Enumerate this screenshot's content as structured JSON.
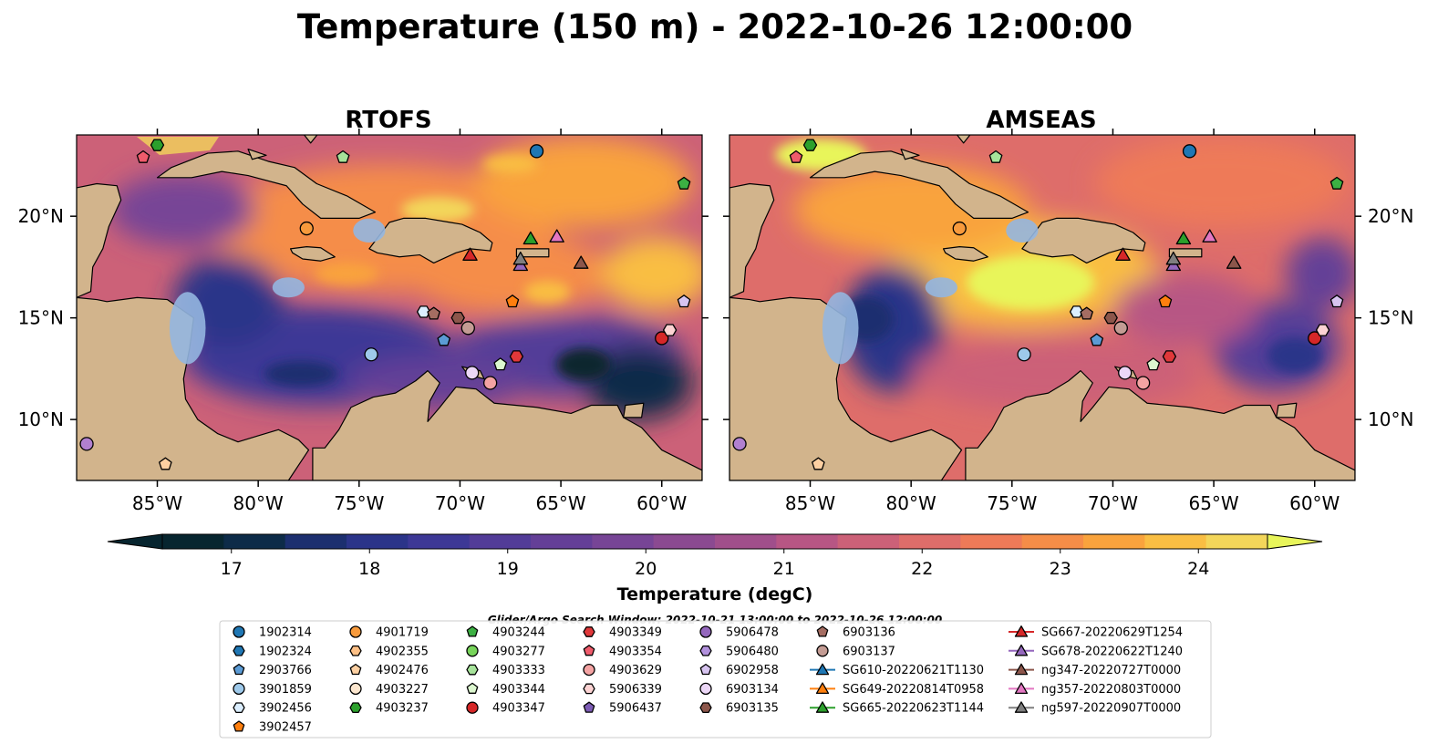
{
  "title": "Temperature (150 m) - 2022-10-26 12:00:00",
  "panels": [
    {
      "name": "RTOFS"
    },
    {
      "name": "AMSEAS"
    }
  ],
  "map": {
    "lon_range": [
      -89,
      -58
    ],
    "lat_range": [
      7,
      24
    ],
    "lon_ticks": [
      {
        "value": -85,
        "label": "85°W"
      },
      {
        "value": -80,
        "label": "80°W"
      },
      {
        "value": -75,
        "label": "75°W"
      },
      {
        "value": -70,
        "label": "70°W"
      },
      {
        "value": -65,
        "label": "65°W"
      },
      {
        "value": -60,
        "label": "60°W"
      }
    ],
    "lat_ticks": [
      {
        "value": 10,
        "label": "10°N"
      },
      {
        "value": 15,
        "label": "15°N"
      },
      {
        "value": 20,
        "label": "20°N"
      }
    ],
    "colors": {
      "land": "#d2b48c",
      "shelf": "#93b6e0",
      "deep": "#0a2a35"
    }
  },
  "colorbar": {
    "label": "Temperature (degC)",
    "range": [
      16.5,
      24.5
    ],
    "ticks": [
      {
        "value": 17,
        "label": "17"
      },
      {
        "value": 18,
        "label": "18"
      },
      {
        "value": 19,
        "label": "19"
      },
      {
        "value": 20,
        "label": "20"
      },
      {
        "value": 21,
        "label": "21"
      },
      {
        "value": 22,
        "label": "22"
      },
      {
        "value": 23,
        "label": "23"
      },
      {
        "value": 24,
        "label": "24"
      }
    ],
    "colors": [
      "#07252f",
      "#0d2b48",
      "#1c2f6f",
      "#2b3489",
      "#3d3896",
      "#523c98",
      "#643f97",
      "#774596",
      "#8b4a91",
      "#a04f8b",
      "#b75684",
      "#cc6178",
      "#de6d6a",
      "#ee7a58",
      "#f58d48",
      "#f9a33d",
      "#f9be43",
      "#f3d65a"
    ],
    "extend_color": "#e8f55a"
  },
  "legend": {
    "search_window": "Glider/Argo Search Window: 2022-10-21 13:00:00 to 2022-10-26 12:00:00",
    "columns": [
      [
        {
          "label": "1902314",
          "marker": "circle",
          "color": "#1f77b4"
        },
        {
          "label": "1902324",
          "marker": "hexagon",
          "color": "#1f77b4"
        },
        {
          "label": "2903766",
          "marker": "pentagon",
          "color": "#5b9bd5"
        },
        {
          "label": "3901859",
          "marker": "circle",
          "color": "#9ec9ea"
        },
        {
          "label": "3902456",
          "marker": "hexagon",
          "color": "#dbeeff"
        },
        {
          "label": "3902457",
          "marker": "pentagon",
          "color": "#ff7f0e"
        }
      ],
      [
        {
          "label": "4901719",
          "marker": "circle",
          "color": "#f79a3c"
        },
        {
          "label": "4902355",
          "marker": "hexagon",
          "color": "#fdc086"
        },
        {
          "label": "4902476",
          "marker": "pentagon",
          "color": "#fdd0a2"
        },
        {
          "label": "4903227",
          "marker": "circle",
          "color": "#fde7cf"
        },
        {
          "label": "4903237",
          "marker": "hexagon",
          "color": "#2ca02c"
        }
      ],
      [
        {
          "label": "4903244",
          "marker": "pentagon",
          "color": "#3cb043"
        },
        {
          "label": "4903277",
          "marker": "circle",
          "color": "#77d45a"
        },
        {
          "label": "4903333",
          "marker": "hexagon",
          "color": "#a6e39a"
        },
        {
          "label": "4903344",
          "marker": "pentagon",
          "color": "#dcf7cf"
        },
        {
          "label": "4903347",
          "marker": "circle",
          "color": "#d62728"
        }
      ],
      [
        {
          "label": "4903349",
          "marker": "hexagon",
          "color": "#e0383a"
        },
        {
          "label": "4903354",
          "marker": "pentagon",
          "color": "#ef5b6b"
        },
        {
          "label": "4903629",
          "marker": "circle",
          "color": "#f4a3a3"
        },
        {
          "label": "5906339",
          "marker": "hexagon",
          "color": "#fcd3d3"
        },
        {
          "label": "5906437",
          "marker": "pentagon",
          "color": "#7d5cb5"
        }
      ],
      [
        {
          "label": "5906478",
          "marker": "circle",
          "color": "#9467bd"
        },
        {
          "label": "5906480",
          "marker": "hexagon",
          "color": "#b291dd"
        },
        {
          "label": "6902958",
          "marker": "pentagon",
          "color": "#d7c4f0"
        },
        {
          "label": "6903134",
          "marker": "circle",
          "color": "#ecd7f7"
        },
        {
          "label": "6903135",
          "marker": "hexagon",
          "color": "#8c564b"
        }
      ],
      [
        {
          "label": "6903136",
          "marker": "pentagon",
          "color": "#a56d62"
        },
        {
          "label": "6903137",
          "marker": "circle",
          "color": "#c49c94"
        },
        {
          "label": "SG610-20220621T1130",
          "marker": "triangle-line",
          "color": "#1f77b4"
        },
        {
          "label": "SG649-20220814T0958",
          "marker": "triangle-line",
          "color": "#ff7f0e"
        },
        {
          "label": "SG665-20220623T1144",
          "marker": "triangle-line",
          "color": "#2ca02c"
        }
      ],
      [
        {
          "label": "SG667-20220629T1254",
          "marker": "triangle-line",
          "color": "#d62728"
        },
        {
          "label": "SG678-20220622T1240",
          "marker": "triangle-line",
          "color": "#9467bd"
        },
        {
          "label": "ng347-20220727T0000",
          "marker": "triangle-line",
          "color": "#8c564b"
        },
        {
          "label": "ng357-20220803T0000",
          "marker": "triangle-line",
          "color": "#e377c2"
        },
        {
          "label": "ng597-20220907T0000",
          "marker": "triangle-line",
          "color": "#7f7f7f"
        }
      ]
    ]
  },
  "observations": [
    {
      "lon": -66.2,
      "lat": 23.2,
      "marker": "circle",
      "color": "#1f77b4"
    },
    {
      "lon": -74.4,
      "lat": 13.2,
      "marker": "circle",
      "color": "#9ec9ea"
    },
    {
      "lon": -71.8,
      "lat": 15.3,
      "marker": "hexagon",
      "color": "#dbeeff"
    },
    {
      "lon": -70.8,
      "lat": 13.9,
      "marker": "pentagon",
      "color": "#5b9bd5"
    },
    {
      "lon": -84.6,
      "lat": 7.8,
      "marker": "pentagon",
      "color": "#fdd0a2"
    },
    {
      "lon": -77.6,
      "lat": 19.4,
      "marker": "circle",
      "color": "#f79a3c"
    },
    {
      "lon": -67.4,
      "lat": 15.8,
      "marker": "pentagon",
      "color": "#ff7f0e"
    },
    {
      "lon": -85.0,
      "lat": 23.5,
      "marker": "hexagon",
      "color": "#2ca02c"
    },
    {
      "lon": -58.9,
      "lat": 21.6,
      "marker": "pentagon",
      "color": "#3cb043"
    },
    {
      "lon": -75.8,
      "lat": 22.9,
      "marker": "pentagon",
      "color": "#a6e39a"
    },
    {
      "lon": -68.0,
      "lat": 12.7,
      "marker": "pentagon",
      "color": "#dcf7cf"
    },
    {
      "lon": -60.0,
      "lat": 14.0,
      "marker": "circle",
      "color": "#d62728"
    },
    {
      "lon": -67.2,
      "lat": 13.1,
      "marker": "hexagon",
      "color": "#e0383a"
    },
    {
      "lon": -85.7,
      "lat": 22.9,
      "marker": "pentagon",
      "color": "#ef5b6b"
    },
    {
      "lon": -68.5,
      "lat": 11.8,
      "marker": "circle",
      "color": "#f4a3a3"
    },
    {
      "lon": -59.6,
      "lat": 14.4,
      "marker": "hexagon",
      "color": "#fcd3d3"
    },
    {
      "lon": -88.5,
      "lat": 8.8,
      "marker": "circle",
      "color": "#b180d0"
    },
    {
      "lon": -58.9,
      "lat": 15.8,
      "marker": "pentagon",
      "color": "#d7c4f0"
    },
    {
      "lon": -69.4,
      "lat": 12.3,
      "marker": "circle",
      "color": "#ecd7f7"
    },
    {
      "lon": -70.1,
      "lat": 15.0,
      "marker": "hexagon",
      "color": "#8c564b"
    },
    {
      "lon": -71.3,
      "lat": 15.2,
      "marker": "pentagon",
      "color": "#a56d62"
    },
    {
      "lon": -69.6,
      "lat": 14.5,
      "marker": "circle",
      "color": "#c49c94"
    },
    {
      "lon": -66.5,
      "lat": 18.9,
      "marker": "triangle",
      "color": "#2ca02c"
    },
    {
      "lon": -69.5,
      "lat": 18.1,
      "marker": "triangle",
      "color": "#d62728"
    },
    {
      "lon": -67.0,
      "lat": 17.6,
      "marker": "triangle",
      "color": "#9467bd"
    },
    {
      "lon": -64.0,
      "lat": 17.7,
      "marker": "triangle",
      "color": "#8c564b"
    },
    {
      "lon": -65.2,
      "lat": 19.0,
      "marker": "triangle",
      "color": "#e377c2"
    },
    {
      "lon": -67.0,
      "lat": 17.9,
      "marker": "triangle",
      "color": "#7f7f7f"
    }
  ]
}
